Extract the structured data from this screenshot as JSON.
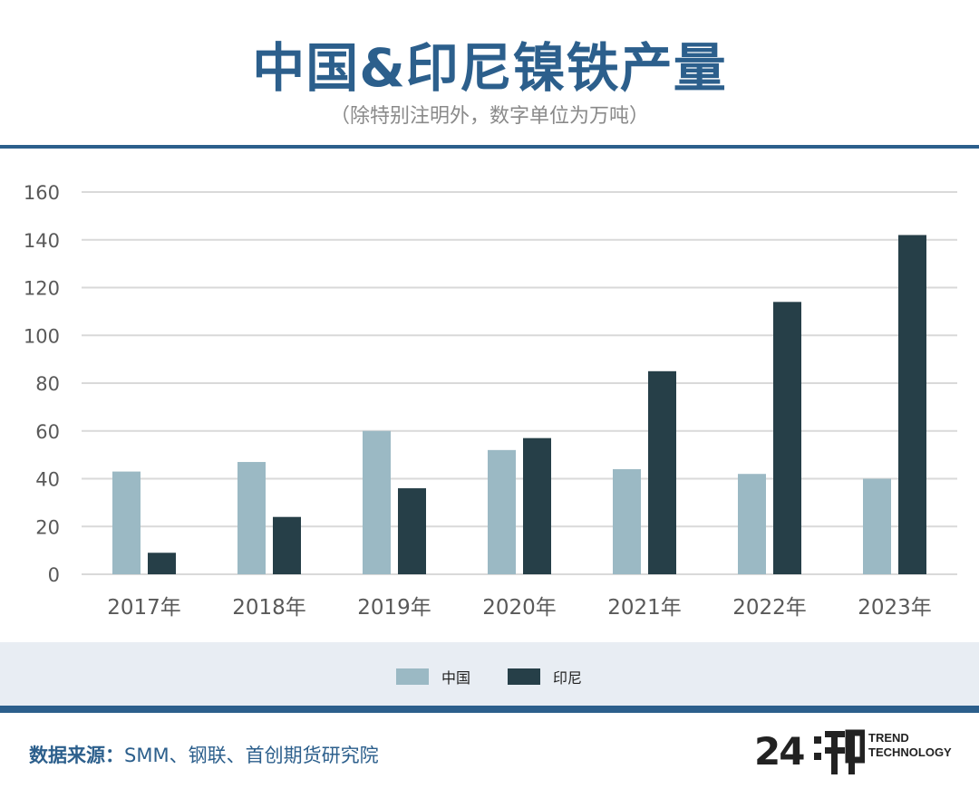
{
  "header": {
    "title": "中国&印尼镍铁产量",
    "subtitle": "（除特别注明外，数字单位为万吨）"
  },
  "chart_data": {
    "type": "bar",
    "categories": [
      "2017年",
      "2018年",
      "2019年",
      "2020年",
      "2021年",
      "2022年",
      "2023年"
    ],
    "series": [
      {
        "name": "中国",
        "values": [
          43,
          47,
          60,
          52,
          44,
          42,
          40
        ],
        "color": "#9bb9c4"
      },
      {
        "name": "印尼",
        "values": [
          9,
          24,
          36,
          57,
          85,
          114,
          142
        ],
        "color": "#263f48"
      }
    ],
    "ylim": [
      0,
      160
    ],
    "yticks": [
      0,
      20,
      40,
      60,
      80,
      100,
      120,
      140,
      160
    ],
    "grid": true,
    "legend": "bottom-center",
    "xlabel": "",
    "ylabel": ""
  },
  "legend": {
    "items": [
      {
        "label": "中国",
        "color": "#9bb9c4"
      },
      {
        "label": "印尼",
        "color": "#263f48"
      }
    ]
  },
  "footer": {
    "source_label": "数据来源：",
    "source_text": "SMM、钢联、首创期货研究院",
    "brand_number": "24",
    "brand_line1": "TREND",
    "brand_line2": "TECHNOLOGY"
  },
  "colors": {
    "accent": "#2c5f8c",
    "band": "#e8edf3"
  }
}
